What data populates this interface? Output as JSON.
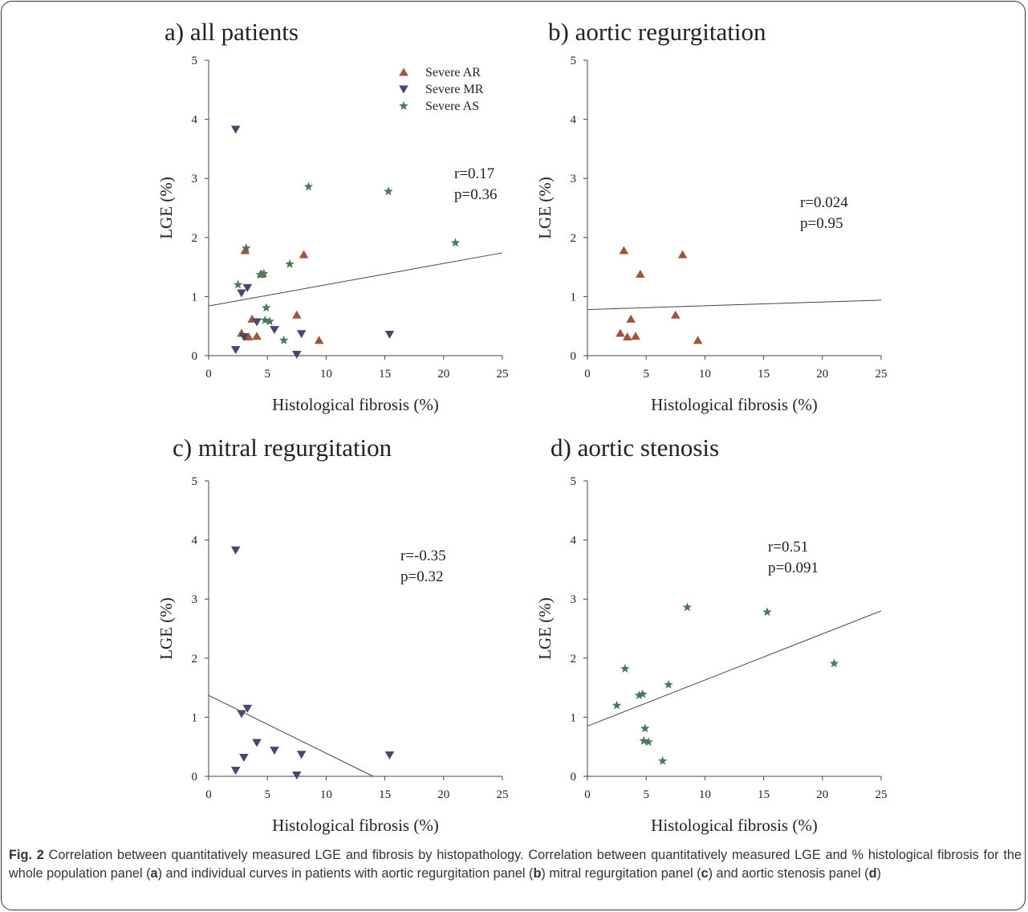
{
  "colors": {
    "ar": "#a0543a",
    "mr": "#4c466c",
    "as": "#4a7c5a",
    "axis": "#444444",
    "text": "#222222"
  },
  "chart_data": [
    {
      "type": "scatter",
      "title": "a) all patients",
      "xlabel": "Histological fibrosis (%)",
      "ylabel": "LGE (%)",
      "xlim": [
        0,
        25
      ],
      "ylim": [
        0,
        5
      ],
      "xticks": [
        "0",
        "5",
        "10",
        "15",
        "20",
        "25"
      ],
      "yticks": [
        "0",
        "1",
        "2",
        "3",
        "4",
        "5"
      ],
      "grid": false,
      "legend": [
        "Severe AR",
        "Severe MR",
        "Severe AS"
      ],
      "legend_position": "top-right",
      "annotation": [
        "r=0.17",
        "p=0.36"
      ],
      "fit_line": {
        "x": [
          0,
          25
        ],
        "y": [
          0.84,
          1.74
        ]
      },
      "series": [
        {
          "name": "Severe AR",
          "marker": "triangle-up",
          "x": [
            2.8,
            3.1,
            3.4,
            3.7,
            4.1,
            4.5,
            7.5,
            8.1,
            9.4
          ],
          "y": [
            0.38,
            1.78,
            0.32,
            0.62,
            0.33,
            1.38,
            0.69,
            1.71,
            0.26
          ]
        },
        {
          "name": "Severe MR",
          "marker": "triangle-down",
          "x": [
            2.3,
            2.3,
            2.8,
            3.0,
            3.3,
            4.1,
            5.6,
            7.5,
            7.9,
            15.4
          ],
          "y": [
            0.1,
            3.83,
            1.06,
            0.32,
            1.15,
            0.57,
            0.44,
            0.02,
            0.37,
            0.36
          ]
        },
        {
          "name": "Severe AS",
          "marker": "star",
          "x": [
            2.5,
            3.2,
            4.4,
            4.7,
            4.8,
            4.9,
            5.2,
            6.4,
            6.9,
            8.5,
            15.3,
            21.0
          ],
          "y": [
            1.2,
            1.82,
            1.37,
            1.39,
            0.6,
            0.81,
            0.58,
            0.26,
            1.55,
            2.86,
            2.78,
            1.91
          ]
        }
      ]
    },
    {
      "type": "scatter",
      "title": "b) aortic regurgitation",
      "xlabel": "Histological fibrosis (%)",
      "ylabel": "LGE (%)",
      "xlim": [
        0,
        25
      ],
      "ylim": [
        0,
        5
      ],
      "xticks": [
        "0",
        "5",
        "10",
        "15",
        "20",
        "25"
      ],
      "yticks": [
        "0",
        "1",
        "2",
        "3",
        "4",
        "5"
      ],
      "grid": false,
      "annotation": [
        "r=0.024",
        "p=0.95"
      ],
      "fit_line": {
        "x": [
          0,
          25
        ],
        "y": [
          0.78,
          0.94
        ]
      },
      "series": [
        {
          "name": "Severe AR",
          "marker": "triangle-up",
          "x": [
            2.8,
            3.1,
            3.4,
            3.7,
            4.1,
            4.5,
            7.5,
            8.1,
            9.4
          ],
          "y": [
            0.38,
            1.78,
            0.32,
            0.62,
            0.33,
            1.38,
            0.69,
            1.71,
            0.26
          ]
        }
      ]
    },
    {
      "type": "scatter",
      "title": "c) mitral regurgitation",
      "xlabel": "Histological fibrosis (%)",
      "ylabel": "LGE (%)",
      "xlim": [
        0,
        25
      ],
      "ylim": [
        0,
        5
      ],
      "xticks": [
        "0",
        "5",
        "10",
        "15",
        "20",
        "25"
      ],
      "yticks": [
        "0",
        "1",
        "2",
        "3",
        "4",
        "5"
      ],
      "grid": false,
      "annotation": [
        "r=-0.35",
        "p=0.32"
      ],
      "fit_line": {
        "x": [
          0,
          14
        ],
        "y": [
          1.37,
          0.0
        ]
      },
      "series": [
        {
          "name": "Severe MR",
          "marker": "triangle-down",
          "x": [
            2.3,
            2.3,
            2.8,
            3.0,
            3.3,
            4.1,
            5.6,
            7.5,
            7.9,
            15.4
          ],
          "y": [
            0.1,
            3.83,
            1.06,
            0.32,
            1.15,
            0.57,
            0.44,
            0.02,
            0.37,
            0.36
          ]
        }
      ]
    },
    {
      "type": "scatter",
      "title": "d) aortic stenosis",
      "xlabel": "Histological fibrosis (%)",
      "ylabel": "LGE (%)",
      "xlim": [
        0,
        25
      ],
      "ylim": [
        0,
        5
      ],
      "xticks": [
        "0",
        "5",
        "10",
        "15",
        "20",
        "25"
      ],
      "yticks": [
        "0",
        "1",
        "2",
        "3",
        "4",
        "5"
      ],
      "grid": false,
      "annotation": [
        "r=0.51",
        "p=0.091"
      ],
      "fit_line": {
        "x": [
          0,
          25
        ],
        "y": [
          0.85,
          2.8
        ]
      },
      "series": [
        {
          "name": "Severe AS",
          "marker": "star",
          "x": [
            2.5,
            3.2,
            4.4,
            4.7,
            4.8,
            4.9,
            5.2,
            6.4,
            6.9,
            8.5,
            15.3,
            21.0
          ],
          "y": [
            1.2,
            1.82,
            1.37,
            1.39,
            0.6,
            0.81,
            0.58,
            0.26,
            1.55,
            2.86,
            2.78,
            1.91
          ]
        }
      ]
    }
  ],
  "caption": {
    "label": "Fig. 2",
    "parts": [
      " Correlation between quantitatively measured LGE and fibrosis by histopathology. Correlation between quantitatively measured LGE and % histological fibrosis for the whole population panel (",
      "a",
      ") and individual curves in patients with aortic regurgitation panel (",
      "b",
      ") mitral regurgitation panel (",
      "c",
      ") and aortic stenosis panel (",
      "d",
      ")"
    ]
  }
}
